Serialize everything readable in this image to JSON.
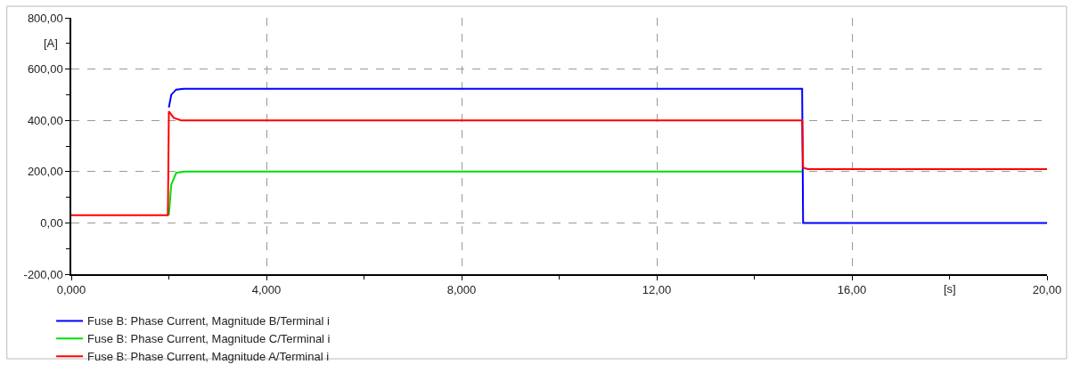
{
  "chart_data": {
    "type": "line",
    "xlabel": "[s]",
    "ylabel": "[A]",
    "xlim": [
      0,
      20
    ],
    "ylim": [
      -200,
      800
    ],
    "xticks": [
      {
        "value": 0,
        "label": "0,000"
      },
      {
        "value": 2,
        "label": null
      },
      {
        "value": 4,
        "label": "4,000"
      },
      {
        "value": 6,
        "label": null
      },
      {
        "value": 8,
        "label": "8,000"
      },
      {
        "value": 10,
        "label": null
      },
      {
        "value": 12,
        "label": "12,00"
      },
      {
        "value": 14,
        "label": null
      },
      {
        "value": 16,
        "label": "16,00"
      },
      {
        "value": 18,
        "label": null
      },
      {
        "value": 20,
        "label": "20,00"
      }
    ],
    "yticks": [
      {
        "value": -200,
        "label": "-200,00"
      },
      {
        "value": -100,
        "label": null
      },
      {
        "value": 0,
        "label": "0,00"
      },
      {
        "value": 100,
        "label": null
      },
      {
        "value": 200,
        "label": "200,00"
      },
      {
        "value": 300,
        "label": null
      },
      {
        "value": 400,
        "label": "400,00"
      },
      {
        "value": 500,
        "label": null
      },
      {
        "value": 600,
        "label": "600,00"
      },
      {
        "value": 700,
        "label": null
      },
      {
        "value": 800,
        "label": "800,00"
      }
    ],
    "grid": true,
    "legend": "bottom left",
    "line_style": "solid",
    "marker": "none",
    "series": [
      {
        "name": "Fuse B: Phase Current, Magnitude B/Terminal i",
        "color": "#0000ff",
        "x": [
          2.0,
          2.05,
          2.15,
          2.3,
          14.98,
          15.0,
          20
        ],
        "values": [
          450,
          500,
          520,
          523,
          523,
          0,
          0
        ]
      },
      {
        "name": "Fuse B: Phase Current, Magnitude C/Terminal i",
        "color": "#00e000",
        "x": [
          2.0,
          2.05,
          2.15,
          2.3,
          14.98
        ],
        "values": [
          30,
          150,
          195,
          200,
          200
        ]
      },
      {
        "name": "Fuse B: Phase Current, Magnitude A/Terminal i",
        "color": "#ff0000",
        "x": [
          0,
          1.98,
          2.0,
          2.1,
          2.25,
          14.98,
          15.0,
          15.1,
          20
        ],
        "values": [
          30,
          30,
          435,
          410,
          400,
          400,
          215,
          210,
          210
        ]
      }
    ]
  }
}
